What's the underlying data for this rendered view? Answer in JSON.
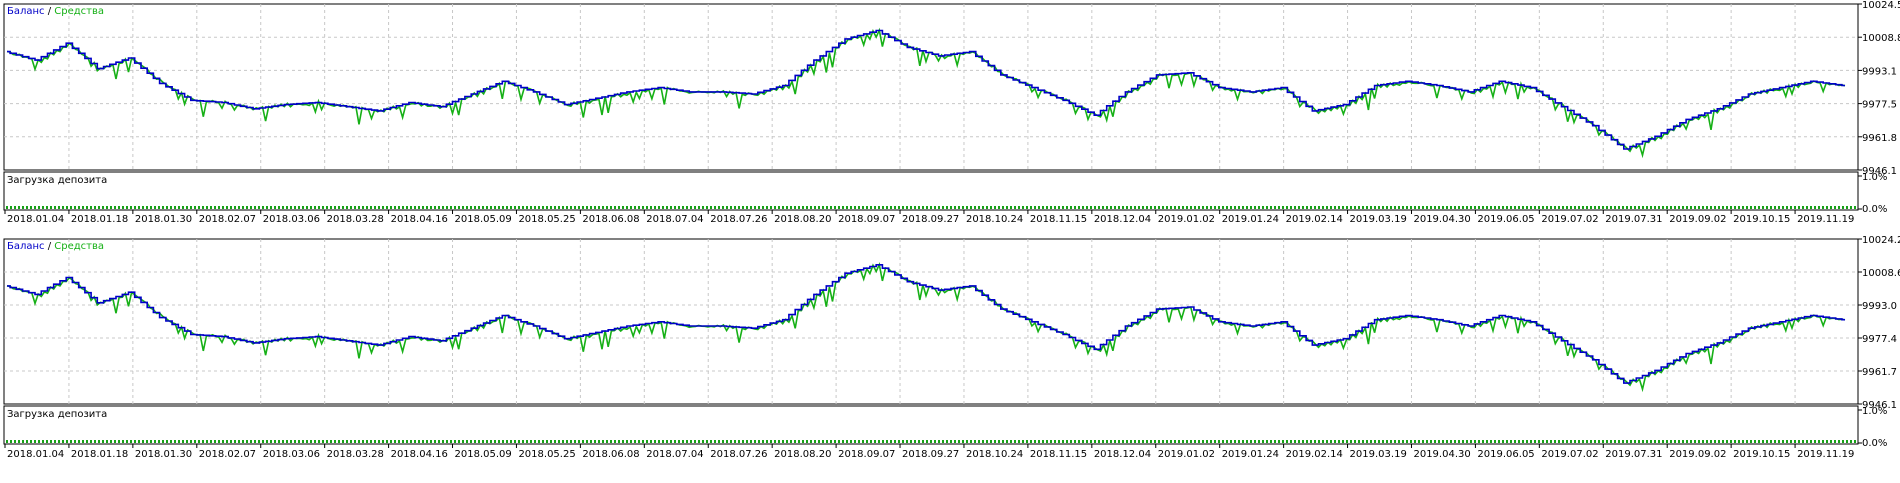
{
  "chart_data": [
    {
      "type": "line",
      "legend": {
        "balance": "Баланс",
        "separator": " / ",
        "equity": "Средства"
      },
      "y_ticks": [
        "10024.5",
        "10008.8",
        "9993.1",
        "9977.5",
        "9961.8",
        "9946.1"
      ],
      "ylim": [
        9946.1,
        10024.5
      ],
      "x_ticks": [
        "2018.01.04",
        "2018.01.18",
        "2018.01.30",
        "2018.02.07",
        "2018.03.06",
        "2018.03.28",
        "2018.04.16",
        "2018.05.09",
        "2018.05.25",
        "2018.06.08",
        "2018.07.04",
        "2018.07.26",
        "2018.08.20",
        "2018.09.07",
        "2018.09.27",
        "2018.10.24",
        "2018.11.15",
        "2018.12.04",
        "2019.01.02",
        "2019.01.24",
        "2019.02.14",
        "2019.03.19",
        "2019.04.30",
        "2019.06.05",
        "2019.07.02",
        "2019.07.31",
        "2019.09.02",
        "2019.10.15",
        "2019.11.19"
      ],
      "balance_points": [
        [
          0,
          10002
        ],
        [
          1,
          9998
        ],
        [
          2,
          10006
        ],
        [
          3,
          9994
        ],
        [
          4,
          9999
        ],
        [
          5,
          9987
        ],
        [
          6,
          9979
        ],
        [
          7,
          9978
        ],
        [
          8,
          9975
        ],
        [
          9,
          9977
        ],
        [
          10,
          9978
        ],
        [
          11,
          9976
        ],
        [
          12,
          9974
        ],
        [
          13,
          9978
        ],
        [
          14,
          9976
        ],
        [
          15,
          9982
        ],
        [
          16,
          9988
        ],
        [
          17,
          9983
        ],
        [
          18,
          9977
        ],
        [
          19,
          9980
        ],
        [
          20,
          9983
        ],
        [
          21,
          9985
        ],
        [
          22,
          9983
        ],
        [
          23,
          9983
        ],
        [
          24,
          9982
        ],
        [
          25,
          9986
        ],
        [
          26,
          9998
        ],
        [
          27,
          10008
        ],
        [
          28,
          10012
        ],
        [
          29,
          10004
        ],
        [
          30,
          10000
        ],
        [
          31,
          10002
        ],
        [
          32,
          9991
        ],
        [
          33,
          9985
        ],
        [
          34,
          9979
        ],
        [
          35,
          9972
        ],
        [
          36,
          9983
        ],
        [
          37,
          9991
        ],
        [
          38,
          9992
        ],
        [
          39,
          9985
        ],
        [
          40,
          9983
        ],
        [
          41,
          9985
        ],
        [
          42,
          9974
        ],
        [
          43,
          9977
        ],
        [
          44,
          9986
        ],
        [
          45,
          9988
        ],
        [
          46,
          9986
        ],
        [
          47,
          9983
        ],
        [
          48,
          9988
        ],
        [
          49,
          9985
        ],
        [
          50,
          9976
        ],
        [
          51,
          9967
        ],
        [
          52,
          9956
        ],
        [
          53,
          9962
        ],
        [
          54,
          9970
        ],
        [
          55,
          9975
        ],
        [
          56,
          9982
        ],
        [
          57,
          9985
        ],
        [
          58,
          9988
        ],
        [
          59,
          9986
        ]
      ],
      "pane": {
        "title": "Загрузка депозита",
        "y_ticks": [
          "1.0%",
          "0.0%"
        ]
      }
    },
    {
      "type": "line",
      "legend": {
        "balance": "Баланс",
        "separator": " / ",
        "equity": "Средства"
      },
      "y_ticks": [
        "10024.2",
        "10008.6",
        "9993.0",
        "9977.4",
        "9961.7",
        "9946.1"
      ],
      "ylim": [
        9946.1,
        10024.2
      ],
      "x_ticks": [
        "2018.01.04",
        "2018.01.18",
        "2018.01.30",
        "2018.02.07",
        "2018.03.06",
        "2018.03.28",
        "2018.04.16",
        "2018.05.09",
        "2018.05.25",
        "2018.06.08",
        "2018.07.04",
        "2018.07.26",
        "2018.08.20",
        "2018.09.07",
        "2018.09.27",
        "2018.10.24",
        "2018.11.15",
        "2018.12.04",
        "2019.01.02",
        "2019.01.24",
        "2019.02.14",
        "2019.03.19",
        "2019.04.30",
        "2019.06.05",
        "2019.07.02",
        "2019.07.31",
        "2019.09.02",
        "2019.10.15",
        "2019.11.19"
      ],
      "balance_points": [
        [
          0,
          10002
        ],
        [
          1,
          9998
        ],
        [
          2,
          10006
        ],
        [
          3,
          9994
        ],
        [
          4,
          9999
        ],
        [
          5,
          9987
        ],
        [
          6,
          9979
        ],
        [
          7,
          9978
        ],
        [
          8,
          9975
        ],
        [
          9,
          9977
        ],
        [
          10,
          9978
        ],
        [
          11,
          9976
        ],
        [
          12,
          9974
        ],
        [
          13,
          9978
        ],
        [
          14,
          9976
        ],
        [
          15,
          9982
        ],
        [
          16,
          9988
        ],
        [
          17,
          9983
        ],
        [
          18,
          9977
        ],
        [
          19,
          9980
        ],
        [
          20,
          9983
        ],
        [
          21,
          9985
        ],
        [
          22,
          9983
        ],
        [
          23,
          9983
        ],
        [
          24,
          9982
        ],
        [
          25,
          9986
        ],
        [
          26,
          9998
        ],
        [
          27,
          10008
        ],
        [
          28,
          10012
        ],
        [
          29,
          10004
        ],
        [
          30,
          10000
        ],
        [
          31,
          10002
        ],
        [
          32,
          9991
        ],
        [
          33,
          9985
        ],
        [
          34,
          9979
        ],
        [
          35,
          9972
        ],
        [
          36,
          9983
        ],
        [
          37,
          9991
        ],
        [
          38,
          9992
        ],
        [
          39,
          9985
        ],
        [
          40,
          9983
        ],
        [
          41,
          9985
        ],
        [
          42,
          9974
        ],
        [
          43,
          9977
        ],
        [
          44,
          9986
        ],
        [
          45,
          9988
        ],
        [
          46,
          9986
        ],
        [
          47,
          9983
        ],
        [
          48,
          9988
        ],
        [
          49,
          9985
        ],
        [
          50,
          9976
        ],
        [
          51,
          9967
        ],
        [
          52,
          9956
        ],
        [
          53,
          9962
        ],
        [
          54,
          9970
        ],
        [
          55,
          9975
        ],
        [
          56,
          9982
        ],
        [
          57,
          9985
        ],
        [
          58,
          9988
        ],
        [
          59,
          9986
        ]
      ],
      "pane": {
        "title": "Загрузка депозита",
        "y_ticks": [
          "1.0%",
          "0.0%"
        ]
      }
    }
  ],
  "colors": {
    "balance": "#0000c8",
    "equity": "#16b016",
    "grid": "#c8c8c8",
    "frame": "#000000",
    "text": "#000000",
    "deposit_bar": "#16a016"
  }
}
